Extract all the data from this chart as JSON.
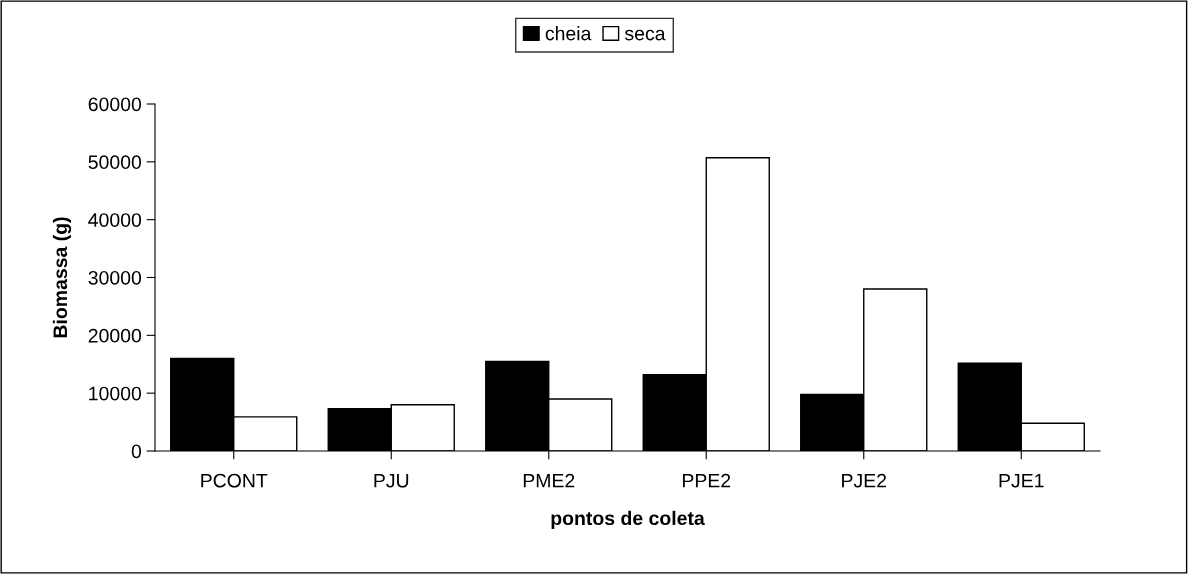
{
  "chart_data": {
    "type": "bar",
    "xlabel": "pontos de coleta",
    "ylabel": "Biomassa (g)",
    "categories": [
      "PCONT",
      "PJU",
      "PME2",
      "PPE2",
      "PJE2",
      "PJE1"
    ],
    "series": [
      {
        "name": "cheia",
        "color": "#000000",
        "values": [
          16000,
          7300,
          15500,
          13200,
          9800,
          15200
        ]
      },
      {
        "name": "seca",
        "color": "#ffffff",
        "values": [
          5900,
          8000,
          9000,
          50700,
          28000,
          4800
        ]
      }
    ],
    "ylim": [
      0,
      60000
    ],
    "yticks": [
      0,
      10000,
      20000,
      30000,
      40000,
      50000,
      60000
    ],
    "grid": false,
    "legend": "top"
  }
}
